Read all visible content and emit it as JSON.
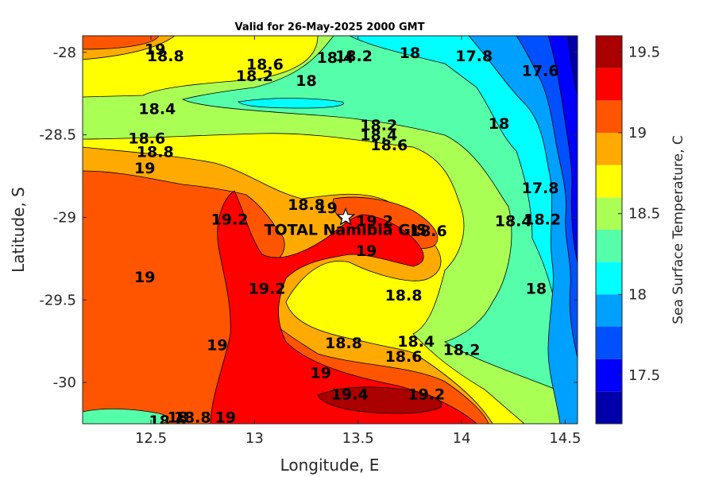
{
  "chart_data": {
    "type": "contourf",
    "title": "Valid for 26-May-2025 2000 GMT",
    "xlabel": "Longitude, E",
    "ylabel": "Latitude, S",
    "colorbar_label": "Sea Surface Temperature, C",
    "xlim": [
      12.17,
      14.56
    ],
    "ylim": [
      -30.25,
      -27.9
    ],
    "y_reversed_ticks_label_negative": true,
    "x_ticks": [
      12.5,
      13,
      13.5,
      14,
      14.5
    ],
    "x_tick_labels": [
      "12.5",
      "13",
      "13.5",
      "14",
      "14.5"
    ],
    "y_ticks": [
      -28,
      -28.5,
      -29,
      -29.5,
      -30
    ],
    "y_tick_labels": [
      "-28",
      "-28.5",
      "-29",
      "-29.5",
      "-30"
    ],
    "colorbar": {
      "vmin": 17.2,
      "vmax": 19.6,
      "levels": [
        17.2,
        17.4,
        17.6,
        17.8,
        18.0,
        18.2,
        18.4,
        18.6,
        18.8,
        19.0,
        19.2,
        19.4,
        19.6
      ],
      "colors": [
        "#0000aa",
        "#0000ff",
        "#0050ff",
        "#00a0ff",
        "#00ffff",
        "#55ffaa",
        "#aaff55",
        "#ffff00",
        "#ffaa00",
        "#ff5500",
        "#ff0000",
        "#aa0000"
      ],
      "ticks": [
        17.5,
        18,
        18.5,
        19,
        19.5
      ],
      "tick_labels": [
        "17.5",
        "18",
        "18.5",
        "19",
        "19.5"
      ]
    },
    "marker": {
      "name": "TOTAL Namibia GIS",
      "lon": 13.44,
      "lat": -29.0,
      "symbol": "star"
    },
    "contour_labels": [
      {
        "text": "19",
        "lon": 12.52,
        "lat": -27.98
      },
      {
        "text": "18.8",
        "lon": 12.57,
        "lat": -28.02
      },
      {
        "text": "18.6",
        "lon": 13.05,
        "lat": -28.07
      },
      {
        "text": "18.4",
        "lon": 13.39,
        "lat": -28.03
      },
      {
        "text": "18.2",
        "lon": 13.48,
        "lat": -28.02
      },
      {
        "text": "18",
        "lon": 13.75,
        "lat": -28.0
      },
      {
        "text": "17.8",
        "lon": 14.06,
        "lat": -28.02
      },
      {
        "text": "17.6",
        "lon": 14.38,
        "lat": -28.11
      },
      {
        "text": "18.2",
        "lon": 13.0,
        "lat": -28.14
      },
      {
        "text": "18",
        "lon": 13.25,
        "lat": -28.17
      },
      {
        "text": "18.4",
        "lon": 12.53,
        "lat": -28.34
      },
      {
        "text": "18.2",
        "lon": 13.6,
        "lat": -28.44
      },
      {
        "text": "18",
        "lon": 14.18,
        "lat": -28.43
      },
      {
        "text": "18.4",
        "lon": 13.6,
        "lat": -28.5
      },
      {
        "text": "18.6",
        "lon": 13.65,
        "lat": -28.56
      },
      {
        "text": "18.6",
        "lon": 12.48,
        "lat": -28.52
      },
      {
        "text": "18.8",
        "lon": 12.52,
        "lat": -28.6
      },
      {
        "text": "19",
        "lon": 12.47,
        "lat": -28.7
      },
      {
        "text": "17.8",
        "lon": 14.38,
        "lat": -28.82
      },
      {
        "text": "18.8",
        "lon": 13.25,
        "lat": -28.92
      },
      {
        "text": "19",
        "lon": 13.35,
        "lat": -28.94
      },
      {
        "text": "19.2",
        "lon": 12.88,
        "lat": -29.01
      },
      {
        "text": "19.2",
        "lon": 13.58,
        "lat": -29.02
      },
      {
        "text": "18.4",
        "lon": 14.25,
        "lat": -29.02
      },
      {
        "text": "18.2",
        "lon": 14.39,
        "lat": -29.01
      },
      {
        "text": "18.6",
        "lon": 13.84,
        "lat": -29.08
      },
      {
        "text": "19",
        "lon": 13.54,
        "lat": -29.2
      },
      {
        "text": "19",
        "lon": 12.47,
        "lat": -29.36
      },
      {
        "text": "19.2",
        "lon": 13.06,
        "lat": -29.43
      },
      {
        "text": "18",
        "lon": 14.36,
        "lat": -29.43
      },
      {
        "text": "18.8",
        "lon": 13.72,
        "lat": -29.47
      },
      {
        "text": "19",
        "lon": 12.82,
        "lat": -29.77
      },
      {
        "text": "18.8",
        "lon": 13.43,
        "lat": -29.76
      },
      {
        "text": "18.4",
        "lon": 13.78,
        "lat": -29.75
      },
      {
        "text": "18.2",
        "lon": 14.0,
        "lat": -29.8
      },
      {
        "text": "18.6",
        "lon": 13.72,
        "lat": -29.84
      },
      {
        "text": "19",
        "lon": 13.32,
        "lat": -29.94
      },
      {
        "text": "19.4",
        "lon": 13.46,
        "lat": -30.07
      },
      {
        "text": "19.2",
        "lon": 13.83,
        "lat": -30.07
      },
      {
        "text": "18.6",
        "lon": 12.58,
        "lat": -30.23
      },
      {
        "text": "18",
        "lon": 12.63,
        "lat": -30.21
      },
      {
        "text": "18.8",
        "lon": 12.7,
        "lat": -30.21
      },
      {
        "text": "19",
        "lon": 12.86,
        "lat": -30.21
      }
    ],
    "grid": false,
    "legend": "colorbar-right"
  }
}
